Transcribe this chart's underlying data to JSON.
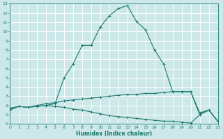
{
  "xlabel": "Humidex (Indice chaleur)",
  "bg_color": "#cde8e8",
  "grid_color": "#ffffff",
  "line_color": "#1a7a6e",
  "x_ticks": [
    0,
    1,
    2,
    3,
    4,
    5,
    6,
    7,
    8,
    9,
    10,
    11,
    12,
    13,
    14,
    15,
    16,
    17,
    18,
    19,
    20,
    21,
    22,
    23
  ],
  "y_ticks": [
    0,
    1,
    2,
    3,
    4,
    5,
    6,
    7,
    8,
    9,
    10,
    11,
    12,
    13
  ],
  "xlim": [
    0,
    23
  ],
  "ylim": [
    0,
    13
  ],
  "curve1_x": [
    0,
    1,
    2,
    3,
    4,
    5,
    6,
    7,
    8,
    9,
    10,
    11,
    12,
    13,
    14,
    15,
    16,
    17,
    18,
    19,
    20,
    21,
    22,
    23
  ],
  "curve1_y": [
    1.5,
    1.9,
    1.8,
    1.9,
    2.0,
    2.2,
    5.0,
    6.5,
    8.5,
    8.5,
    10.5,
    11.7,
    12.5,
    12.8,
    11.1,
    10.2,
    8.0,
    6.5,
    3.5,
    3.5,
    3.5,
    1.2,
    1.5,
    0.3
  ],
  "curve2_x": [
    0,
    1,
    2,
    3,
    4,
    5,
    6,
    7,
    8,
    9,
    10,
    11,
    12,
    13,
    14,
    15,
    16,
    17,
    18,
    19,
    20,
    21,
    22,
    23
  ],
  "curve2_y": [
    1.7,
    1.9,
    1.8,
    2.0,
    2.2,
    2.3,
    2.5,
    2.6,
    2.7,
    2.8,
    2.9,
    3.0,
    3.1,
    3.2,
    3.2,
    3.3,
    3.3,
    3.4,
    3.5,
    3.5,
    3.5,
    1.0,
    1.5,
    0.3
  ],
  "curve3_x": [
    0,
    1,
    2,
    3,
    4,
    5,
    6,
    7,
    8,
    9,
    10,
    11,
    12,
    13,
    14,
    15,
    16,
    17,
    18,
    19,
    20,
    21,
    22,
    23
  ],
  "curve3_y": [
    1.7,
    1.9,
    1.8,
    1.9,
    2.0,
    1.9,
    1.8,
    1.6,
    1.5,
    1.3,
    1.1,
    0.9,
    0.8,
    0.7,
    0.6,
    0.5,
    0.4,
    0.3,
    0.3,
    0.2,
    0.1,
    1.0,
    1.5,
    0.3
  ],
  "tick_fontsize": 4.5,
  "xlabel_fontsize": 5.5
}
